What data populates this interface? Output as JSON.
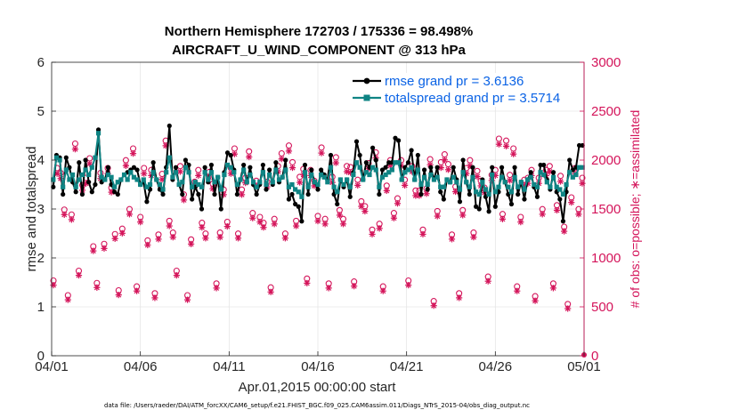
{
  "chart_data": {
    "type": "line",
    "title": "Northern Hemisphere 172703 / 175336 = 98.498%",
    "subtitle": "AIRCRAFT_U_WIND_COMPONENT @ 313 hPa",
    "xlabel": "Apr.01,2015 00:00:00 start",
    "ylabel": "rmse and totalspread",
    "ylabel_right": "# of obs: o=possible; ∗=assimilated",
    "x_tick_labels": [
      "04/01",
      "04/06",
      "04/11",
      "04/16",
      "04/21",
      "04/26",
      "05/01"
    ],
    "x_range": [
      0,
      30
    ],
    "ylim": [
      0,
      6
    ],
    "y_ticks": [
      "0",
      "1",
      "2",
      "3",
      "4",
      "5",
      "6"
    ],
    "ylim_right": [
      0,
      3000
    ],
    "y_ticks_right": [
      "0",
      "500",
      "1000",
      "1500",
      "2000",
      "2500",
      "3000"
    ],
    "legend_position": "top-right",
    "series": [
      {
        "name": "rmse grand pr = 3.6136",
        "color": "#000000",
        "axis": "left",
        "values": [
          3.45,
          4.1,
          4.05,
          3.3,
          4.05,
          3.85,
          3.55,
          3.35,
          3.95,
          3.3,
          4.0,
          3.55,
          3.35,
          3.5,
          4.62,
          3.55,
          3.6,
          3.85,
          3.5,
          3.35,
          3.3,
          3.6,
          3.7,
          3.75,
          3.8,
          3.85,
          3.8,
          3.5,
          3.55,
          3.15,
          3.4,
          3.95,
          3.6,
          3.4,
          3.3,
          3.85,
          4.7,
          3.6,
          3.85,
          3.5,
          3.3,
          4.0,
          3.9,
          3.2,
          3.45,
          3.3,
          3.0,
          3.85,
          3.55,
          3.9,
          3.3,
          3.65,
          3.0,
          3.75,
          4.15,
          4.1,
          3.8,
          3.3,
          3.6,
          3.9,
          3.55,
          3.85,
          3.5,
          3.3,
          3.5,
          3.9,
          3.4,
          3.8,
          3.5,
          3.95,
          3.55,
          3.65,
          4.0,
          3.2,
          3.3,
          3.1,
          3.05,
          2.75,
          3.9,
          3.3,
          3.8,
          3.55,
          3.4,
          3.8,
          3.7,
          3.6,
          4.1,
          3.3,
          3.1,
          3.6,
          3.45,
          3.6,
          3.25,
          3.75,
          4.38,
          4.1,
          3.6,
          3.95,
          3.85,
          4.25,
          4.0,
          3.3,
          3.8,
          3.85,
          3.95,
          3.95,
          4.45,
          4.4,
          3.6,
          3.85,
          3.95,
          4.2,
          3.6,
          4.1,
          3.3,
          3.8,
          3.4,
          3.85,
          3.6,
          3.85,
          3.35,
          3.2,
          3.6,
          3.55,
          3.85,
          3.6,
          3.15,
          4.0,
          3.55,
          3.3,
          3.85,
          3.05,
          3.0,
          3.6,
          3.25,
          2.95,
          3.85,
          3.05,
          3.35,
          3.85,
          3.55,
          3.3,
          3.1,
          3.85,
          3.3,
          3.55,
          3.2,
          3.6,
          3.75,
          3.45,
          3.25,
          3.9,
          3.9,
          3.6,
          3.4,
          3.75,
          3.35,
          3.2,
          2.75,
          3.35,
          4.0,
          3.8,
          3.85,
          4.3,
          4.3
        ],
        "first_marker": 0
      },
      {
        "name": "totalspread grand pr = 3.5714",
        "color": "#0f8484",
        "axis": "left",
        "values": [
          3.6,
          4.05,
          4.0,
          3.45,
          3.8,
          3.6,
          3.7,
          3.45,
          3.6,
          3.7,
          3.8,
          3.7,
          3.85,
          4.05,
          4.55,
          3.65,
          3.6,
          3.7,
          3.65,
          3.45,
          3.55,
          3.6,
          3.7,
          3.6,
          3.75,
          3.65,
          3.6,
          3.5,
          3.6,
          3.45,
          3.5,
          3.75,
          3.6,
          3.5,
          3.4,
          3.75,
          4.05,
          3.65,
          3.75,
          3.5,
          3.55,
          3.85,
          3.75,
          3.45,
          3.55,
          3.5,
          3.45,
          3.75,
          3.6,
          3.75,
          3.55,
          3.65,
          3.4,
          3.7,
          3.9,
          3.85,
          3.75,
          3.5,
          3.6,
          3.8,
          3.55,
          3.7,
          3.55,
          3.45,
          3.55,
          3.75,
          3.5,
          3.7,
          3.55,
          3.8,
          3.6,
          3.65,
          3.8,
          3.45,
          3.5,
          3.4,
          3.35,
          3.25,
          3.75,
          3.45,
          3.7,
          3.55,
          3.5,
          3.7,
          3.65,
          3.55,
          3.85,
          3.45,
          3.35,
          3.6,
          3.5,
          3.6,
          3.45,
          3.7,
          3.95,
          3.85,
          3.6,
          3.75,
          3.7,
          3.85,
          3.8,
          3.45,
          3.65,
          3.7,
          3.75,
          3.8,
          3.95,
          3.95,
          3.6,
          3.75,
          3.8,
          3.85,
          3.6,
          3.8,
          3.5,
          3.65,
          3.5,
          3.7,
          3.6,
          3.65,
          3.45,
          3.45,
          3.6,
          3.55,
          3.65,
          3.55,
          3.4,
          3.75,
          3.55,
          3.45,
          3.65,
          3.35,
          3.3,
          3.55,
          3.4,
          3.3,
          3.7,
          3.35,
          3.45,
          3.65,
          3.55,
          3.45,
          3.35,
          3.65,
          3.45,
          3.55,
          3.4,
          3.6,
          3.65,
          3.5,
          3.45,
          3.75,
          3.7,
          3.55,
          3.45,
          3.65,
          3.45,
          3.4,
          3.3,
          3.5,
          3.75,
          3.65,
          3.7,
          3.85,
          3.85
        ],
        "first_marker": 1
      },
      {
        "name": "obs possible",
        "color": "#d4145a",
        "axis": "right",
        "marker": "o",
        "values": [
          750,
          1900,
          1850,
          1475,
          600,
          1425,
          2150,
          850,
          1725,
          1800,
          2000,
          1100,
          725,
          1850,
          1125,
          1900,
          1700,
          1225,
          650,
          1280,
          1980,
          1480,
          2100,
          690,
          1400,
          1900,
          1160,
          1880,
          620,
          1220,
          1840,
          2180,
          1360,
          1240,
          850,
          1920,
          1630,
          600,
          1170,
          1760,
          1880,
          1340,
          1230,
          1860,
          1740,
          720,
          1240,
          1680,
          1350,
          1900,
          2100,
          1230,
          1680,
          1800,
          2070,
          1440,
          1770,
          1400,
          1340,
          1760,
          680,
          1380,
          1920,
          2050,
          1230,
          2130,
          1960,
          1360,
          1810,
          1890,
          770,
          1880,
          1770,
          1410,
          2110,
          1380,
          720,
          1810,
          2010,
          1470,
          1380,
          1920,
          1910,
          740,
          1780,
          1560,
          1510,
          1950,
          1270,
          2060,
          1330,
          690,
          1720,
          1980,
          1440,
          1590,
          1980,
          1780,
          750,
          1920,
          1670,
          1670,
          1270,
          1690,
          1990,
          540,
          1460,
          1960,
          2040,
          1940,
          1220,
          1710,
          620,
          1470,
          1900,
          1980,
          1240,
          1870,
          1770,
          1700,
          790,
          1830,
          1880,
          2200,
          1430,
          2180,
          1830,
          2100,
          690,
          1400,
          1780,
          1800,
          1880,
          590,
          1800,
          1480,
          1880,
          1920,
          720,
          1520,
          1820,
          1300,
          510,
          1600,
          1900,
          1480,
          1800
        ],
        "first_marker": 0
      },
      {
        "name": "obs assimilated",
        "color": "#d4145a",
        "axis": "right",
        "marker": "*",
        "values": [
          740,
          1880,
          1830,
          1460,
          590,
          1410,
          2130,
          840,
          1710,
          1780,
          1980,
          1090,
          715,
          1830,
          1115,
          1880,
          1690,
          1215,
          640,
          1270,
          1960,
          1465,
          2085,
          680,
          1385,
          1880,
          1150,
          1860,
          610,
          1210,
          1820,
          2165,
          1345,
          1230,
          840,
          1900,
          1610,
          590,
          1160,
          1745,
          1860,
          1330,
          1220,
          1845,
          1725,
          710,
          1230,
          1665,
          1340,
          1880,
          2080,
          1220,
          1665,
          1785,
          2050,
          1425,
          1755,
          1385,
          1330,
          1745,
          670,
          1365,
          1900,
          2030,
          1220,
          2110,
          1940,
          1345,
          1790,
          1870,
          760,
          1860,
          1755,
          1395,
          2090,
          1365,
          710,
          1790,
          1990,
          1455,
          1365,
          1900,
          1890,
          730,
          1760,
          1545,
          1495,
          1930,
          1260,
          2040,
          1320,
          680,
          1705,
          1960,
          1425,
          1575,
          1960,
          1760,
          740,
          1900,
          1655,
          1655,
          1260,
          1675,
          1970,
          530,
          1445,
          1940,
          2020,
          1920,
          1210,
          1695,
          610,
          1455,
          1880,
          1960,
          1230,
          1850,
          1755,
          1685,
          780,
          1810,
          1860,
          2180,
          1415,
          2160,
          1810,
          2080,
          680,
          1385,
          1760,
          1780,
          1860,
          580,
          1780,
          1465,
          1860,
          1900,
          710,
          1505,
          1800,
          1290,
          500,
          1585,
          1880,
          1465,
          1780
        ],
        "first_marker": 0
      }
    ],
    "footer_note": "data file: /Users/raeder/DAI/ATM_forcXX/CAM6_setup/f.e21.FHIST_BGC.f09_025.CAM6assim.011/Diags_NTrS_2015-04/obs_diag_output.nc"
  }
}
